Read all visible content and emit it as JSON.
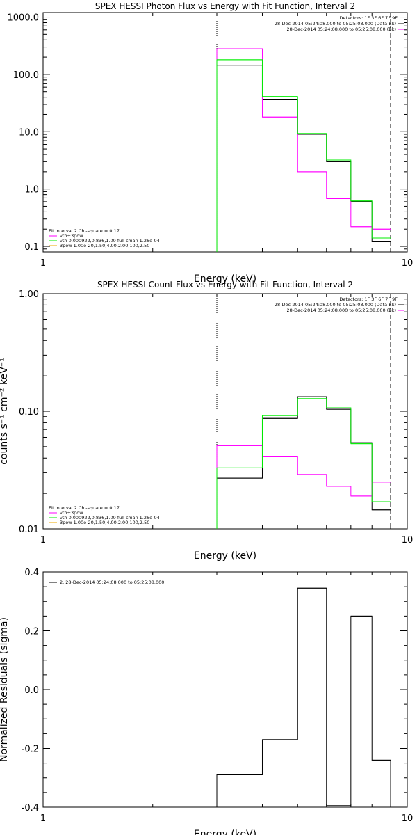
{
  "chart_data": [
    {
      "type": "line",
      "title": "SPEX HESSI Photon Flux vs Energy with Fit Function, Interval 2",
      "xlabel": "Energy (keV)",
      "ylabel": "",
      "xscale": "log",
      "yscale": "log",
      "xlim": [
        1,
        10
      ],
      "ylim": [
        0.08,
        1200
      ],
      "xticks": [
        "1",
        "10"
      ],
      "yticks": [
        "0.1",
        "1.0",
        "10.0",
        "100.0",
        "1000.0"
      ],
      "step_edges": [
        3,
        4,
        5,
        6,
        7,
        8,
        9
      ],
      "series": [
        {
          "name": "",
          "color": "#000000",
          "values": [
            145,
            37,
            9.0,
            3.0,
            0.6,
            0.12
          ]
        },
        {
          "name": "vth+3pow",
          "color": "#ff00ff",
          "values": [
            280,
            18,
            2.0,
            0.68,
            0.22,
            0.2
          ]
        },
        {
          "name": "vth 0.000922,0.836,1.00  full chian 1.26e-04",
          "color": "#00ee00",
          "values": [
            180,
            41,
            9.3,
            3.2,
            0.62,
            0.14
          ]
        }
      ],
      "vlines": [
        {
          "x": 3,
          "style": "dotted"
        },
        {
          "x": 9,
          "style": "dashed"
        }
      ],
      "detectors": "Detectors: 1F 3F 6F 7F 9F",
      "legend_right": [
        {
          "text": "28-Dec-2014 05:24:08.000 to 05:25:08.000 (Data-Bk)",
          "color": "#000000"
        },
        {
          "text": "28-Dec-2014 05:24:08.000 to 05:25:08.000 (Bk)",
          "color": "#ff00ff"
        }
      ],
      "legend_left": [
        {
          "text": "Fit Interval 2   Chi-square = 0.17",
          "color": "#000000"
        },
        {
          "text": "vth+3pow",
          "color": "#ff00ff"
        },
        {
          "text": "vth 0.000922,0.836,1.00  full chian 1.26e-04",
          "color": "#00ee00"
        },
        {
          "text": "3pow 1.00e-20,1.50,4.00,2.00,100,2.50",
          "color": "#eeaa00"
        }
      ]
    },
    {
      "type": "line",
      "title": "SPEX HESSI Count Flux vs Energy with Fit Function, Interval 2",
      "xlabel": "Energy (keV)",
      "ylabel": "counts s⁻¹ cm⁻² keV⁻¹",
      "xscale": "log",
      "yscale": "log",
      "xlim": [
        1,
        10
      ],
      "ylim": [
        0.01,
        1.0
      ],
      "xticks": [
        "1",
        "10"
      ],
      "yticks": [
        "0.01",
        "0.10",
        "1.00"
      ],
      "step_edges": [
        3,
        4,
        5,
        6,
        7,
        8,
        9
      ],
      "series": [
        {
          "name": "",
          "color": "#000000",
          "values": [
            0.027,
            0.087,
            0.133,
            0.104,
            0.054,
            0.0145
          ]
        },
        {
          "name": "vth+3pow",
          "color": "#ff00ff",
          "values": [
            0.051,
            0.041,
            0.029,
            0.023,
            0.019,
            0.025
          ]
        },
        {
          "name": "vth 0.000922,0.836,1.00  full chian 1.26e-04",
          "color": "#00ee00",
          "values": [
            0.033,
            0.092,
            0.128,
            0.107,
            0.053,
            0.017
          ]
        }
      ],
      "vlines": [
        {
          "x": 3,
          "style": "dotted"
        },
        {
          "x": 9,
          "style": "dashed"
        }
      ],
      "detectors": "Detectors: 1F 3F 6F 7F 9F",
      "legend_right": [
        {
          "text": "28-Dec-2014 05:24:08.000 to 05:25:08.000 (Data-Bk)",
          "color": "#000000"
        },
        {
          "text": "28-Dec-2014 05:24:08.000 to 05:25:08.000 (Bk)",
          "color": "#ff00ff"
        }
      ],
      "legend_left": [
        {
          "text": "Fit Interval 2   Chi-square = 0.17",
          "color": "#000000"
        },
        {
          "text": "vth+3pow",
          "color": "#ff00ff"
        },
        {
          "text": "vth 0.000922,0.836,1.00  full chian 1.26e-04",
          "color": "#00ee00"
        },
        {
          "text": "3pow 1.00e-20,1.50,4.00,2.00,100,2.50",
          "color": "#eeaa00"
        }
      ]
    },
    {
      "type": "line",
      "title": "",
      "xlabel": "Energy (keV)",
      "ylabel": "Normalized Residuals (sigma)",
      "xscale": "log",
      "yscale": "linear",
      "xlim": [
        1,
        10
      ],
      "ylim": [
        -0.4,
        0.4
      ],
      "xticks": [
        "1",
        "10"
      ],
      "yticks": [
        "-0.4",
        "-0.2",
        "0.0",
        "0.2",
        "0.4"
      ],
      "step_edges": [
        3,
        4,
        5,
        6,
        7,
        8,
        9
      ],
      "series": [
        {
          "name": "2. 28-Dec-2014 05:24:08.000 to 05:25:08.000",
          "color": "#000000",
          "values": [
            -0.29,
            -0.17,
            0.345,
            -0.395,
            0.25,
            -0.24
          ]
        }
      ],
      "legend_left": [
        {
          "text": "2. 28-Dec-2014 05:24:08.000 to 05:25:08.000",
          "color": "#000000"
        }
      ]
    }
  ]
}
